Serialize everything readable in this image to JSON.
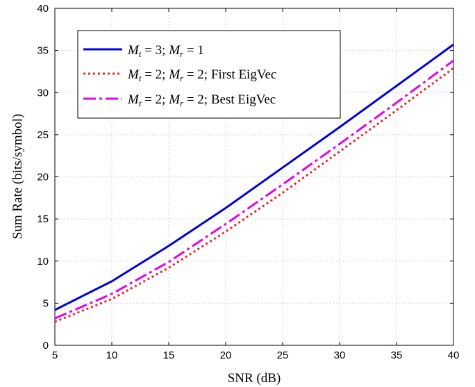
{
  "chart_data": {
    "type": "line",
    "xlabel": "SNR (dB)",
    "ylabel": "Sum Rate (bits/symbol)",
    "xlim": [
      5,
      40
    ],
    "ylim": [
      0,
      40
    ],
    "xticks": [
      5,
      10,
      15,
      20,
      25,
      30,
      35,
      40
    ],
    "yticks": [
      0,
      5,
      10,
      15,
      20,
      25,
      30,
      35,
      40
    ],
    "grid": true,
    "legend_position": "top-left",
    "x": [
      5,
      10,
      15,
      20,
      25,
      30,
      35,
      40
    ],
    "series": [
      {
        "name": "M_t = 3; M_r = 1",
        "color": "#0000dd",
        "style": "solid",
        "values": [
          4.2,
          7.6,
          11.8,
          16.3,
          21.1,
          25.9,
          30.8,
          35.7
        ]
      },
      {
        "name": "M_t = 2; M_r = 2; First EigVec",
        "color": "#e8242c",
        "style": "dotted",
        "values": [
          2.8,
          5.5,
          9.2,
          13.5,
          18.1,
          23.0,
          27.9,
          32.9
        ]
      },
      {
        "name": "M_t = 2; M_r = 2; Best EigVec",
        "color": "#e800e8",
        "style": "dashdot",
        "values": [
          3.2,
          6.1,
          9.9,
          14.4,
          19.1,
          23.9,
          28.8,
          33.8
        ]
      }
    ],
    "legend": [
      {
        "math": "M_t = 3; M_r = 1",
        "text": ""
      },
      {
        "math": "M_t = 2; M_r = 2;",
        "text": " First EigVec"
      },
      {
        "math": "M_t = 2; M_r = 2;",
        "text": " Best EigVec"
      }
    ]
  }
}
